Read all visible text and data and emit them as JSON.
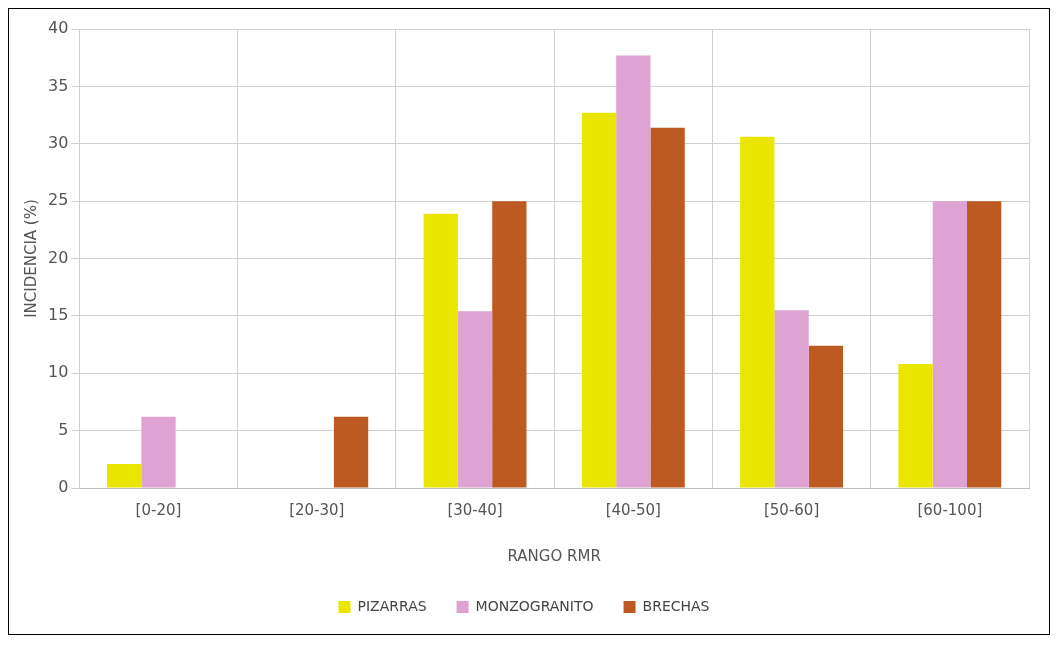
{
  "chart_data": {
    "type": "bar",
    "xlabel": "RANGO RMR",
    "ylabel": "INCIDENCIA (%)",
    "categories": [
      "[0-20]",
      "[20-30]",
      "[30-40]",
      "[40-50]",
      "[50-60]",
      "[60-100]"
    ],
    "series": [
      {
        "name": "PIZARRAS",
        "color": "#eae600",
        "values": [
          2.1,
          0,
          23.9,
          32.7,
          30.6,
          10.8
        ]
      },
      {
        "name": "MONZOGRANITO",
        "color": "#dea3d2",
        "values": [
          6.2,
          0,
          15.4,
          37.7,
          15.5,
          25
        ]
      },
      {
        "name": "BRECHAS",
        "color": "#bd5a22",
        "values": [
          0,
          6.2,
          25,
          31.4,
          12.4,
          25
        ]
      }
    ],
    "ylim": [
      0,
      40
    ],
    "yticks": [
      0,
      5,
      10,
      15,
      20,
      25,
      30,
      35,
      40
    ],
    "grid": true,
    "legend": "bottom"
  }
}
